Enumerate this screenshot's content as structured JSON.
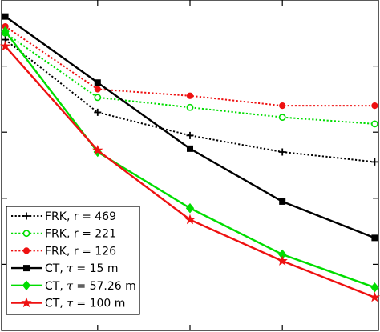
{
  "chart_data": {
    "type": "line",
    "title": "",
    "xlabel": "",
    "ylabel": "",
    "x": [
      1,
      2,
      3,
      4,
      5
    ],
    "xlim": [
      0.96,
      5.04
    ],
    "ylim": [
      0,
      1
    ],
    "grid": false,
    "legend_position": "bottom-left",
    "series": [
      {
        "name": "FRK, r = 469",
        "label_prefix": "FRK, r = ",
        "label_value": "469",
        "color": "#000000",
        "dash": "dotted",
        "marker": "plus",
        "values": [
          0.88,
          0.66,
          0.59,
          0.54,
          0.51
        ]
      },
      {
        "name": "FRK, r = 221",
        "label_prefix": "FRK, r = ",
        "label_value": "221",
        "color": "#00dd00",
        "dash": "dotted",
        "marker": "circle-open",
        "values": [
          0.9,
          0.705,
          0.675,
          0.645,
          0.625
        ]
      },
      {
        "name": "FRK, r = 126",
        "label_prefix": "FRK, r = ",
        "label_value": "126",
        "color": "#ee1111",
        "dash": "dotted",
        "marker": "circle-filled",
        "values": [
          0.92,
          0.73,
          0.71,
          0.68,
          0.68
        ]
      },
      {
        "name": "CT, τ = 15 m",
        "label_prefix": "CT, ",
        "label_sym": "τ",
        "label_value": " = 15 m",
        "color": "#000000",
        "dash": "solid",
        "marker": "square",
        "values": [
          0.95,
          0.75,
          0.55,
          0.39,
          0.28
        ]
      },
      {
        "name": "CT, τ = 57.26 m",
        "label_prefix": "CT, ",
        "label_sym": "τ",
        "label_value": " = 57.26 m",
        "color": "#00dd00",
        "dash": "solid",
        "marker": "diamond",
        "values": [
          0.905,
          0.54,
          0.37,
          0.23,
          0.13
        ]
      },
      {
        "name": "CT, τ = 100 m",
        "label_prefix": "CT, ",
        "label_sym": "τ",
        "label_value": " = 100 m",
        "color": "#ee1111",
        "dash": "solid",
        "marker": "star",
        "values": [
          0.86,
          0.545,
          0.335,
          0.21,
          0.1
        ]
      }
    ]
  }
}
